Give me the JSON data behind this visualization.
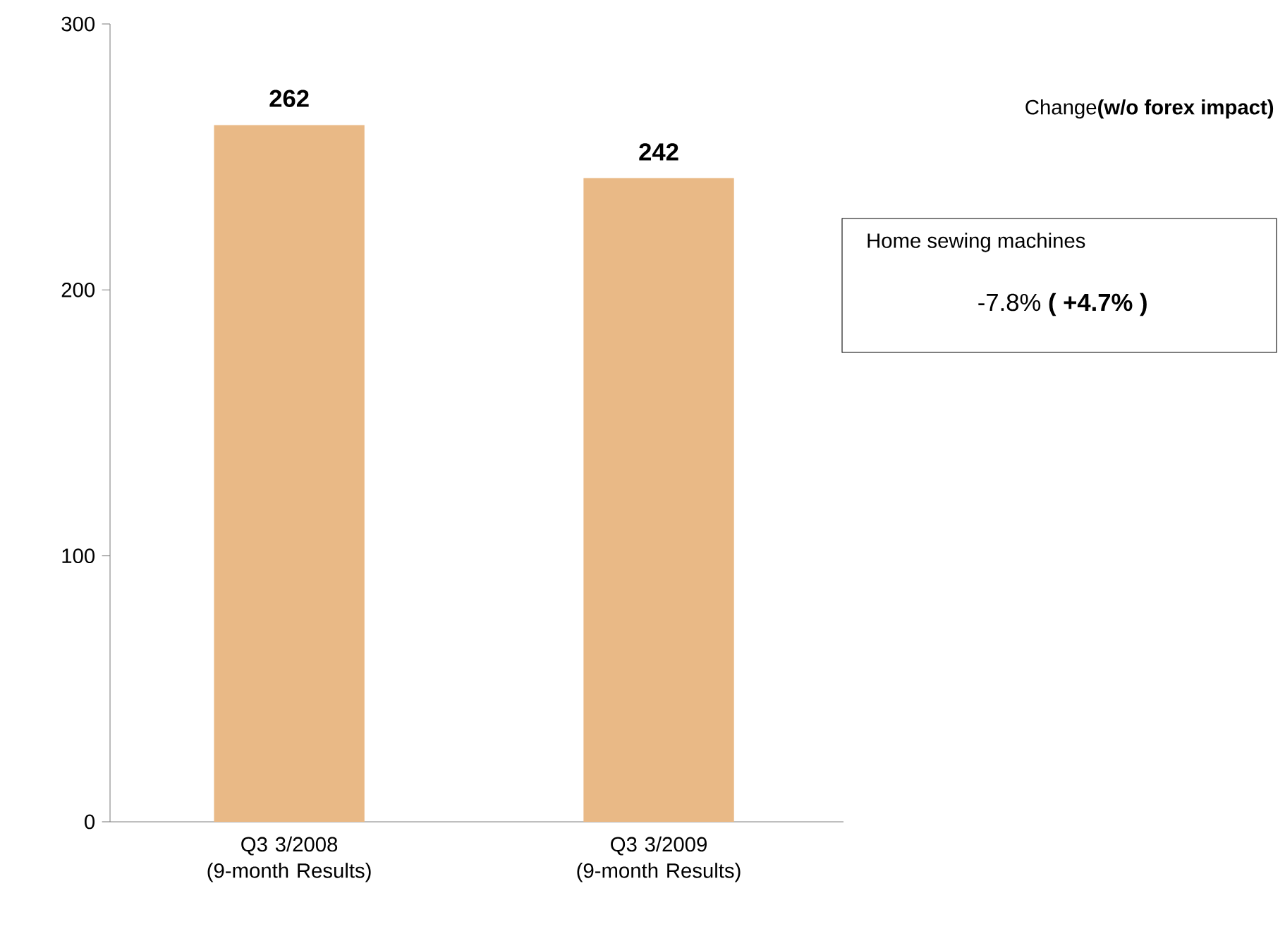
{
  "chart_data": {
    "type": "bar",
    "categories": [
      "Q3 3/2008 (9-month Results)",
      "Q3 3/2009 (9-month Results)"
    ],
    "values": [
      262,
      242
    ],
    "color": "#e9b986",
    "data_labels": true,
    "ylim": [
      0,
      300
    ],
    "yticks": [
      0,
      100,
      200,
      300
    ],
    "annotations": [
      "Change**(w/o forex impact)**",
      "Home sewing machines",
      "-7.8% **(   +4.7%  )**"
    ]
  }
}
